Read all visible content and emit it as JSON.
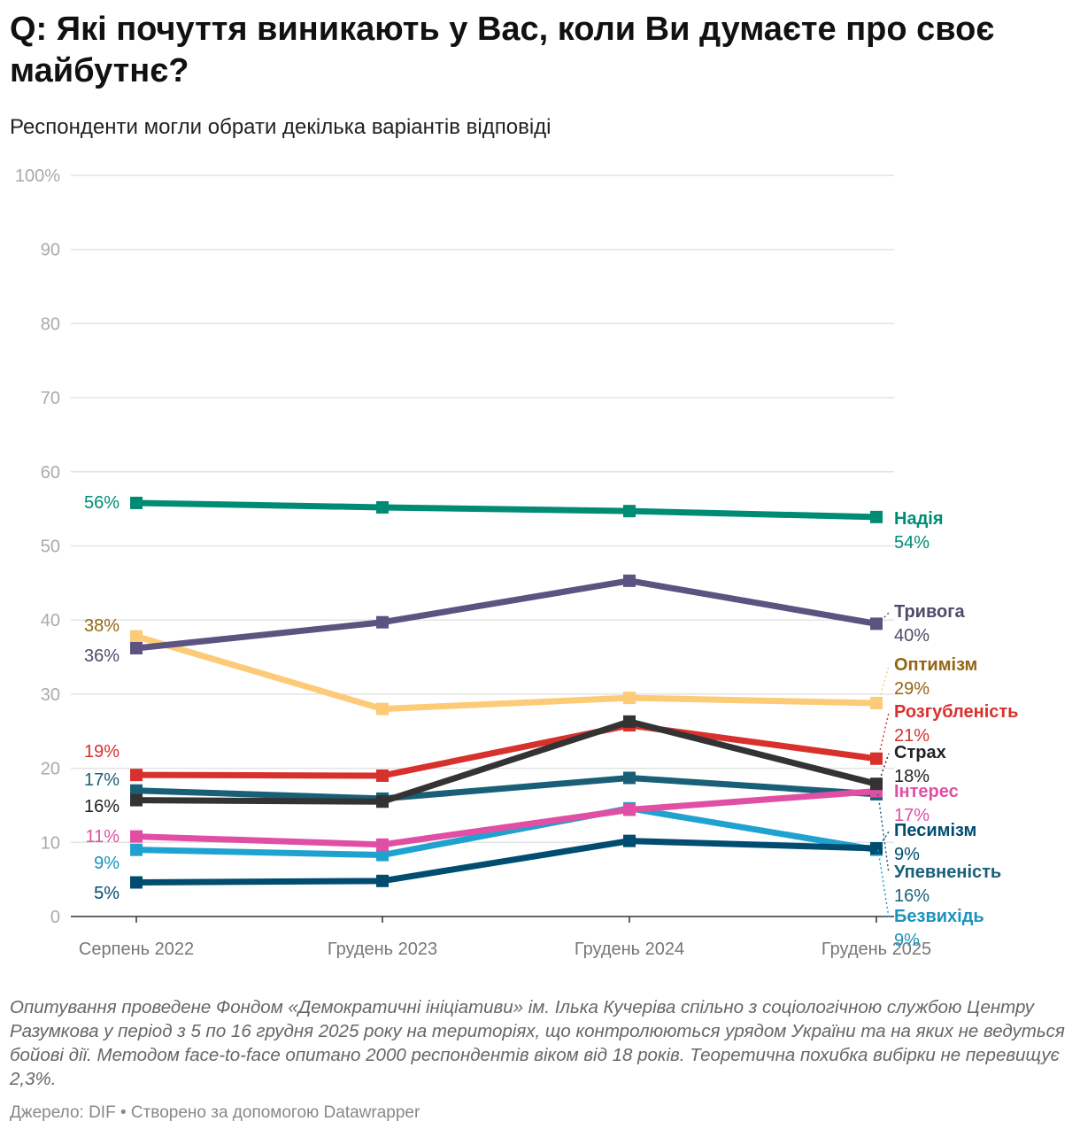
{
  "header": {
    "title": "Q: Які почуття виникають у Вас, коли Ви думаєте про своє майбутнє?",
    "subtitle": "Респонденти могли обрати декілька варіантів відповіді"
  },
  "chart_data": {
    "type": "line",
    "x": [
      "Серпень 2022",
      "Грудень 2023",
      "Грудень 2024",
      "Грудень 2025"
    ],
    "ylim": [
      0,
      100
    ],
    "yticks": [
      0,
      10,
      20,
      30,
      40,
      50,
      60,
      70,
      80,
      90,
      100
    ],
    "ytick_labels": [
      "0",
      "10",
      "20",
      "30",
      "40",
      "50",
      "60",
      "70",
      "80",
      "90",
      "100%"
    ],
    "grid": true,
    "legend": "direct labels at line ends (right)",
    "series": [
      {
        "name": "Надія",
        "values": [
          55.8,
          55.2,
          54.7,
          53.9
        ],
        "color": "#008c74",
        "start_label": "56%",
        "end_label": "54%",
        "label_color": "#008c74"
      },
      {
        "name": "Тривога",
        "values": [
          36.2,
          39.7,
          45.3,
          39.5
        ],
        "color": "#5c5380",
        "start_label": "36%",
        "end_label": "40%",
        "label_color": "#4f4a6b"
      },
      {
        "name": "Оптимізм",
        "values": [
          37.8,
          28.0,
          29.5,
          28.8
        ],
        "color": "#fdcb77",
        "start_label": "38%",
        "end_label": "29%",
        "label_color": "#946514"
      },
      {
        "name": "Розгубленість",
        "values": [
          19.1,
          19.0,
          25.8,
          21.3
        ],
        "color": "#d8312d",
        "start_label": "19%",
        "end_label": "21%",
        "label_color": "#d8312d"
      },
      {
        "name": "Страх",
        "values": [
          15.7,
          15.5,
          26.3,
          17.9
        ],
        "color": "#333333",
        "start_label": "16%",
        "end_label": "18%",
        "label_color": "#222222"
      },
      {
        "name": "Інтерес",
        "values": [
          10.8,
          9.7,
          14.4,
          16.9
        ],
        "color": "#e04fa4",
        "start_label": "11%",
        "end_label": "17%",
        "label_color": "#e04fa4"
      },
      {
        "name": "Песимізм",
        "values": [
          4.6,
          4.8,
          10.2,
          9.2
        ],
        "color": "#004d70",
        "start_label": "5%",
        "end_label": "9%",
        "label_color": "#004d70"
      },
      {
        "name": "Упевненість",
        "values": [
          17.0,
          15.9,
          18.7,
          16.5
        ],
        "color": "#1a5f78",
        "start_label": "17%",
        "end_label": "16%",
        "label_color": "#1a5f78"
      },
      {
        "name": "Безвихідь",
        "values": [
          9.0,
          8.3,
          14.6,
          9.0
        ],
        "color": "#1fa2d0",
        "start_label": "9%",
        "end_label": "9%",
        "label_color": "#1b93bd"
      }
    ]
  },
  "footer": {
    "notes": "Опитування проведене Фондом «Демократичні ініціативи» ім. Ілька Кучеріва спільно з соціологічною службою Центру Разумкова у період з 5 по 16 грудня 2025 року на територіях, що контролюються урядом України та на яких не ведуться бойові дії. Методом face-to-face опитано 2000 респондентів віком від 18 років. Теоретична похибка вибірки не перевищує 2,3%.",
    "source": "Джерело: DIF • Створено за допомогою Datawrapper"
  }
}
